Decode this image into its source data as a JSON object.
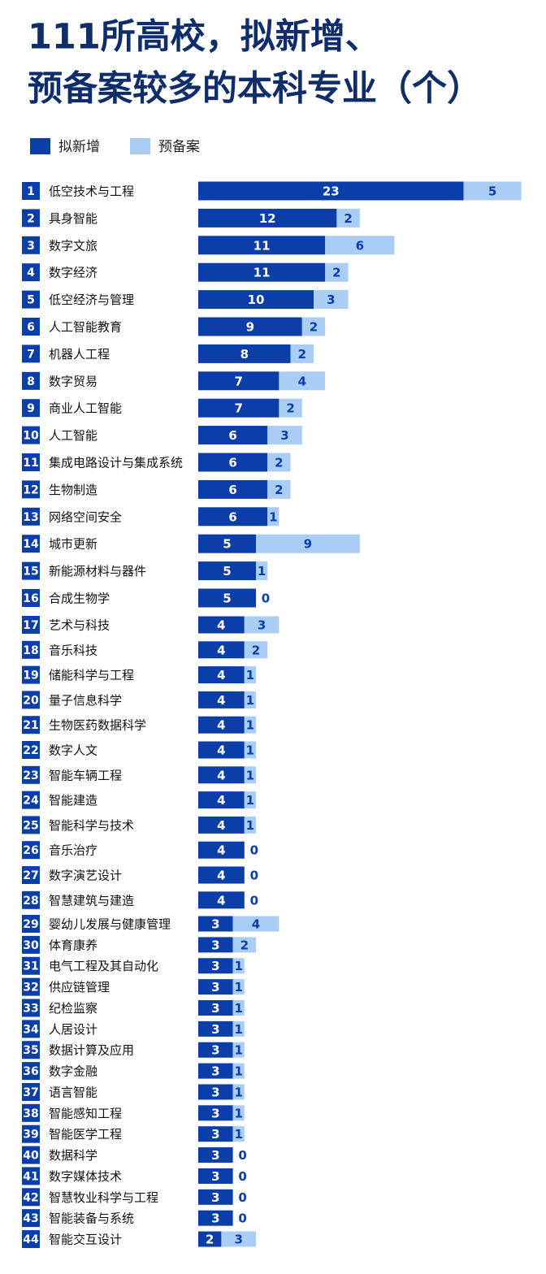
{
  "chart_data": {
    "type": "stacked-bar",
    "title": [
      "111所高校，拟新增、",
      "预备案较多的本科专业（个）"
    ],
    "ranks": [
      1,
      2,
      3,
      4,
      5,
      6,
      7,
      8,
      9,
      10,
      11,
      12,
      13,
      14,
      15,
      16,
      17,
      18,
      19,
      20,
      21,
      22,
      23,
      24,
      25,
      26,
      27,
      28,
      29,
      30,
      31,
      32,
      33,
      34,
      35,
      36,
      37,
      38,
      39,
      40,
      41,
      42,
      43,
      44
    ],
    "categories": [
      "低空技术与工程",
      "具身智能",
      "数字文旅",
      "数字经济",
      "低空经济与管理",
      "人工智能教育",
      "机器人工程",
      "数字贸易",
      "商业人工智能",
      "人工智能",
      "集成电路设计与集成系统",
      "生物制造",
      "网络空间安全",
      "城市更新",
      "新能源材料与器件",
      "合成生物学",
      "艺术与科技",
      "音乐科技",
      "储能科学与工程",
      "量子信息科学",
      "生物医药数据科学",
      "数字人文",
      "智能车辆工程",
      "智能建造",
      "智能科学与技术",
      "音乐治疗",
      "数字演艺设计",
      "智慧建筑与建造",
      "婴幼儿发展与健康管理",
      "体育康养",
      "电气工程及其自动化",
      "供应链管理",
      "纪检监察",
      "人居设计",
      "数据计算及应用",
      "数字金融",
      "语言智能",
      "智能感知工程",
      "智能医学工程",
      "数据科学",
      "数字媒体技术",
      "智慧牧业科学与工程",
      "智能装备与系统",
      "智能交互设计"
    ],
    "series": [
      {
        "name": "拟新增",
        "color": "#0b3ea8",
        "values": [
          23,
          12,
          11,
          11,
          10,
          9,
          8,
          7,
          7,
          6,
          6,
          6,
          6,
          5,
          5,
          5,
          4,
          4,
          4,
          4,
          4,
          4,
          4,
          4,
          4,
          4,
          4,
          4,
          3,
          3,
          3,
          3,
          3,
          3,
          3,
          3,
          3,
          3,
          3,
          3,
          3,
          3,
          3,
          2
        ]
      },
      {
        "name": "预备案",
        "color": "#a9cdf5",
        "values": [
          5,
          2,
          6,
          2,
          3,
          2,
          2,
          4,
          2,
          3,
          2,
          2,
          1,
          9,
          1,
          0,
          3,
          2,
          1,
          1,
          1,
          1,
          1,
          1,
          1,
          0,
          0,
          0,
          4,
          2,
          1,
          1,
          1,
          1,
          1,
          1,
          1,
          1,
          1,
          0,
          0,
          0,
          0,
          3
        ]
      }
    ]
  }
}
